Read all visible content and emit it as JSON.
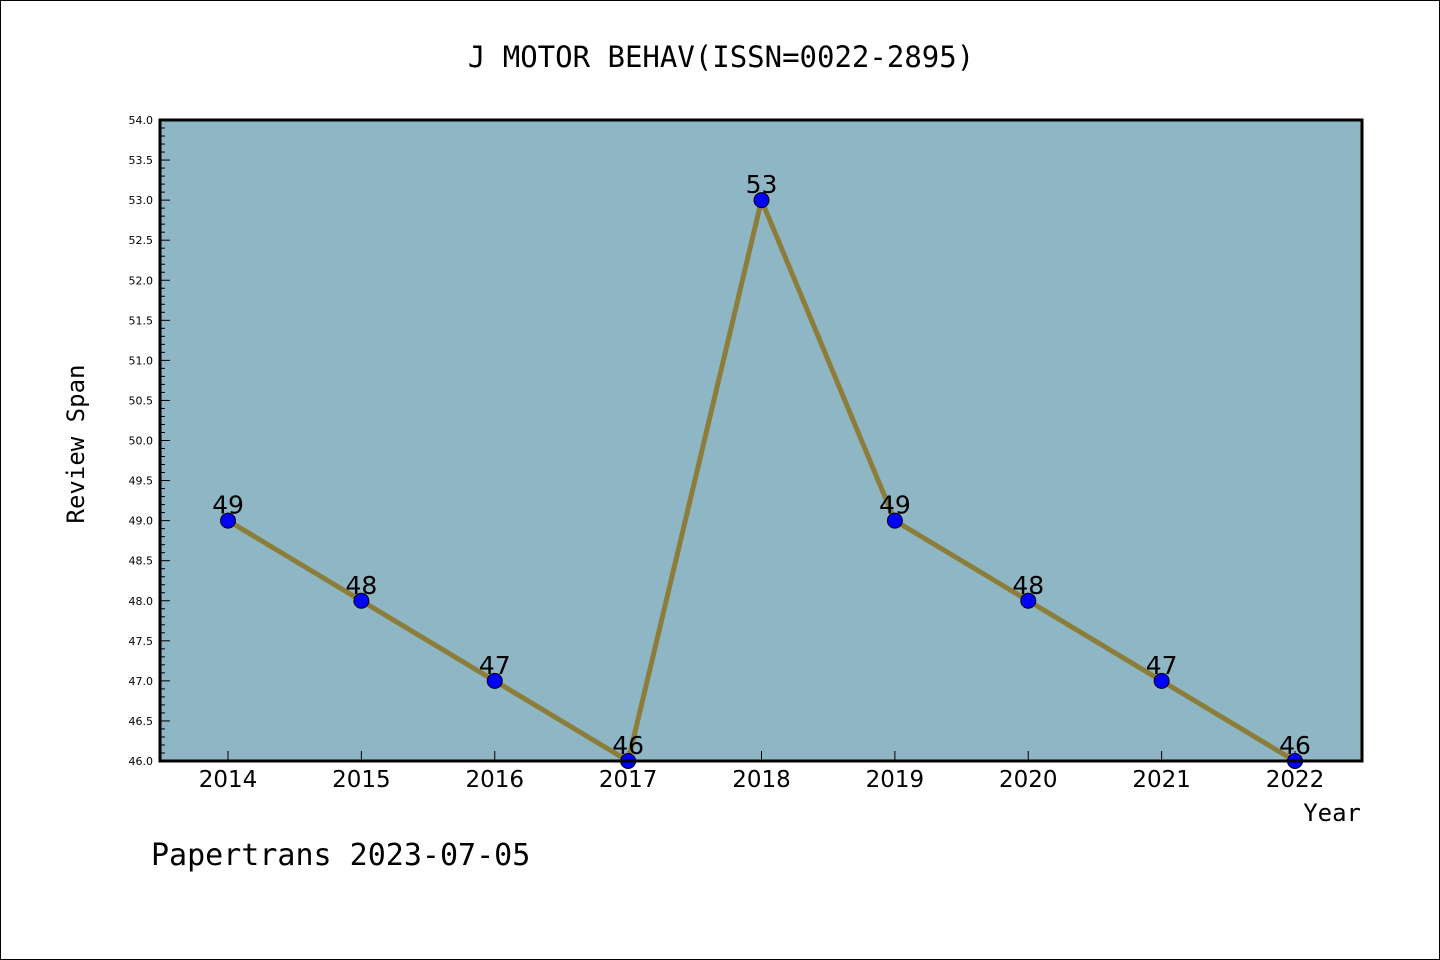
{
  "chart_data": {
    "type": "line",
    "title": "J MOTOR BEHAV(ISSN=0022-2895)",
    "xlabel": "Year",
    "ylabel": "Review Span",
    "footer": "Papertrans 2023-07-05",
    "categories": [
      "2014",
      "2015",
      "2016",
      "2017",
      "2018",
      "2019",
      "2020",
      "2021",
      "2022"
    ],
    "values": [
      49,
      48,
      47,
      46,
      53,
      49,
      48,
      47,
      46
    ],
    "ylim": [
      46.0,
      54.0
    ],
    "ytick_step": 0.5,
    "yminor_step": 0.1,
    "grid": false,
    "legend": "none",
    "colors": {
      "plot_background": "#8fb6c5",
      "line": "#8c7e3a",
      "marker": "#0000ff",
      "marker_edge": "#000000",
      "frame": "#000000"
    }
  }
}
